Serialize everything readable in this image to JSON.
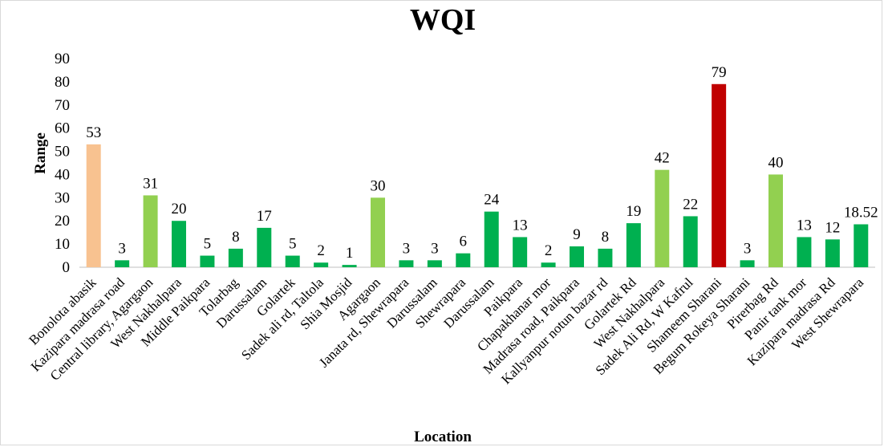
{
  "chart_data": {
    "type": "bar",
    "title": "WQI",
    "xlabel": "Location",
    "ylabel": "Range",
    "ylim": [
      0,
      90
    ],
    "yticks": [
      "0",
      "10",
      "20",
      "30",
      "40",
      "50",
      "60",
      "70",
      "80",
      "90"
    ],
    "grid": false,
    "legend": "none",
    "categories": [
      "Bonolota abasik",
      "Kazipara madrasa road",
      "Central library, Agargaon",
      "West Nakhalpara",
      "Middle Paikpara",
      "Tolarbag",
      "Darussalam",
      "Golartek",
      "Sadek ali rd, Taltola",
      "Shia Mosjid",
      "Agargaon",
      "Janata rd, Shewrapara",
      "Darussalam",
      "Shewrapara",
      "Darussalam",
      "Paikpara",
      "Chapakhanar mor",
      "Madrasa road, Paikpara",
      "Kallyanpur notun bazar rd",
      "Golartek Rd",
      "West Nakhalpara",
      "Sadek Ali Rd, W Kafrul",
      "Shameem Sharani",
      "Begum Rokeya Sharani",
      "Pirerbag Rd",
      "Panir tank mor",
      "Kazipara madrasa Rd",
      "West Shewrapara"
    ],
    "values": [
      53,
      3,
      31,
      20,
      5,
      8,
      17,
      5,
      2,
      1,
      30,
      3,
      3,
      6,
      24,
      13,
      2,
      9,
      8,
      19,
      42,
      22,
      79,
      3,
      40,
      13,
      12,
      18.52
    ],
    "data_labels": [
      "53",
      "3",
      "31",
      "20",
      "5",
      "8",
      "17",
      "5",
      "2",
      "1",
      "30",
      "3",
      "3",
      "6",
      "24",
      "13",
      "2",
      "9",
      "8",
      "19",
      "42",
      "22",
      "79",
      "3",
      "40",
      "13",
      "12",
      "18.52"
    ],
    "bar_colors": [
      "#f8c290",
      "#00b050",
      "#92d050",
      "#00b050",
      "#00b050",
      "#00b050",
      "#00b050",
      "#00b050",
      "#00b050",
      "#00b050",
      "#92d050",
      "#00b050",
      "#00b050",
      "#00b050",
      "#00b050",
      "#00b050",
      "#00b050",
      "#00b050",
      "#00b050",
      "#00b050",
      "#92d050",
      "#00b050",
      "#c00000",
      "#00b050",
      "#92d050",
      "#00b050",
      "#00b050",
      "#00b050"
    ]
  }
}
